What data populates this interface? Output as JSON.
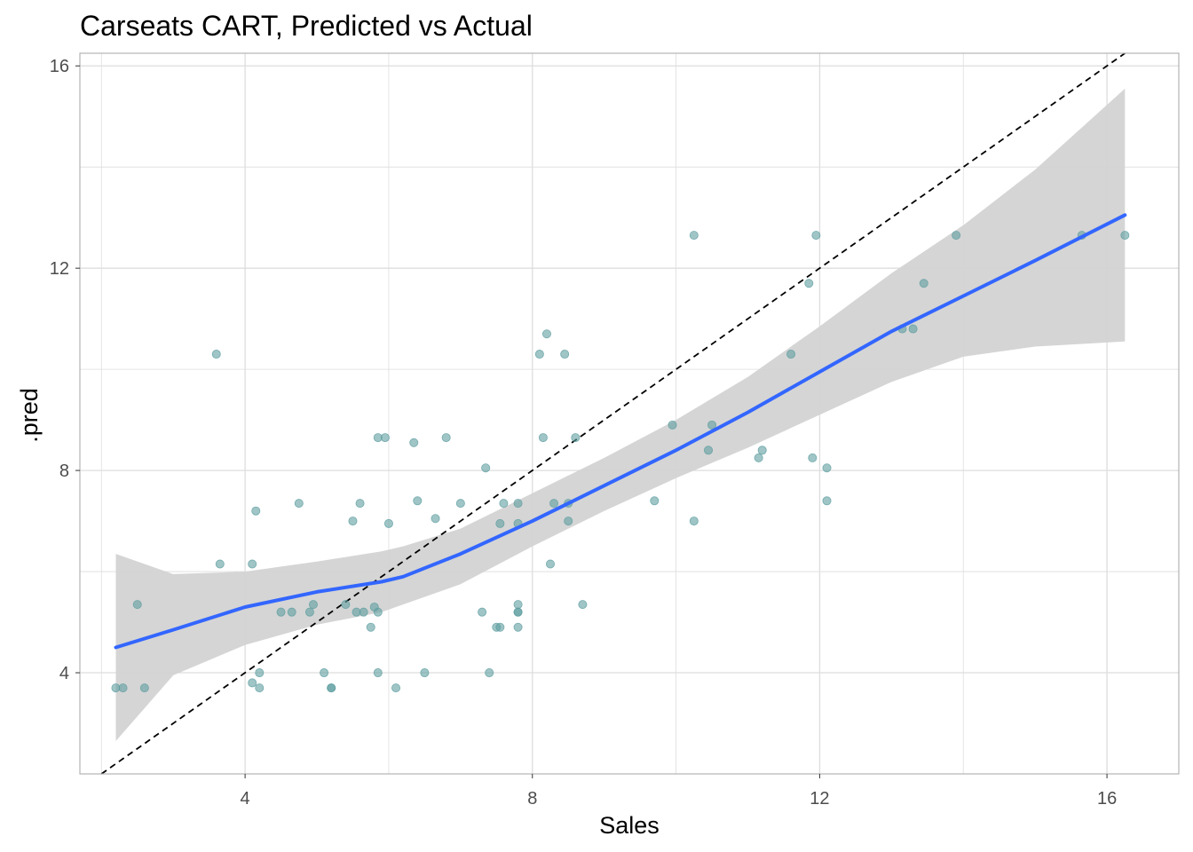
{
  "chart_data": {
    "type": "scatter",
    "title": "Carseats CART, Predicted vs Actual",
    "xlabel": "Sales",
    "ylabel": ".pred",
    "xlim": [
      1.7,
      17.0
    ],
    "ylim": [
      2.0,
      16.25
    ],
    "xticks": [
      4,
      8,
      12,
      16
    ],
    "yticks": [
      4,
      8,
      12,
      16
    ],
    "grid": true,
    "colors": {
      "points": "#5f9ea0",
      "smooth": "#3366ff",
      "ribbon": "#d3d3d3",
      "reference": "#000000",
      "grid": "#dedede",
      "panel_border": "#b3b3b3"
    },
    "reference_line": {
      "slope": 1,
      "intercept": 0,
      "style": "dashed"
    },
    "points": [
      [
        2.2,
        3.7
      ],
      [
        2.3,
        3.7
      ],
      [
        2.5,
        5.35
      ],
      [
        2.6,
        3.7
      ],
      [
        3.6,
        10.3
      ],
      [
        3.65,
        6.15
      ],
      [
        4.1,
        6.15
      ],
      [
        4.1,
        3.8
      ],
      [
        4.15,
        7.2
      ],
      [
        4.2,
        3.7
      ],
      [
        4.2,
        4.0
      ],
      [
        4.5,
        5.2
      ],
      [
        4.65,
        5.2
      ],
      [
        4.75,
        7.35
      ],
      [
        4.9,
        5.2
      ],
      [
        4.95,
        5.35
      ],
      [
        5.1,
        4.0
      ],
      [
        5.2,
        3.7
      ],
      [
        5.2,
        3.7
      ],
      [
        5.4,
        5.35
      ],
      [
        5.5,
        7.0
      ],
      [
        5.55,
        5.2
      ],
      [
        5.6,
        7.35
      ],
      [
        5.65,
        5.2
      ],
      [
        5.75,
        4.9
      ],
      [
        5.8,
        5.3
      ],
      [
        5.85,
        5.2
      ],
      [
        5.85,
        4.0
      ],
      [
        5.85,
        8.65
      ],
      [
        5.95,
        8.65
      ],
      [
        6.0,
        6.95
      ],
      [
        6.1,
        3.7
      ],
      [
        6.35,
        8.55
      ],
      [
        6.4,
        7.4
      ],
      [
        6.5,
        4.0
      ],
      [
        6.65,
        7.05
      ],
      [
        6.8,
        8.65
      ],
      [
        7.0,
        7.35
      ],
      [
        7.3,
        5.2
      ],
      [
        7.35,
        8.05
      ],
      [
        7.4,
        4.0
      ],
      [
        7.5,
        4.9
      ],
      [
        7.55,
        4.9
      ],
      [
        7.55,
        6.95
      ],
      [
        7.6,
        7.35
      ],
      [
        7.8,
        5.2
      ],
      [
        7.8,
        4.9
      ],
      [
        7.8,
        7.35
      ],
      [
        7.8,
        6.95
      ],
      [
        7.8,
        5.35
      ],
      [
        7.8,
        5.2
      ],
      [
        8.1,
        10.3
      ],
      [
        8.15,
        8.65
      ],
      [
        8.2,
        10.7
      ],
      [
        8.25,
        6.15
      ],
      [
        8.3,
        7.35
      ],
      [
        8.45,
        10.3
      ],
      [
        8.5,
        7.35
      ],
      [
        8.5,
        7.0
      ],
      [
        8.6,
        8.65
      ],
      [
        8.7,
        5.35
      ],
      [
        9.7,
        7.4
      ],
      [
        9.95,
        8.9
      ],
      [
        10.25,
        12.65
      ],
      [
        10.25,
        7.0
      ],
      [
        10.45,
        8.4
      ],
      [
        10.5,
        8.9
      ],
      [
        11.15,
        8.25
      ],
      [
        11.2,
        8.4
      ],
      [
        11.6,
        10.3
      ],
      [
        11.85,
        11.7
      ],
      [
        11.9,
        8.25
      ],
      [
        11.95,
        12.65
      ],
      [
        12.1,
        8.05
      ],
      [
        12.1,
        7.4
      ],
      [
        13.15,
        10.8
      ],
      [
        13.3,
        10.8
      ],
      [
        13.45,
        11.7
      ],
      [
        13.9,
        12.65
      ],
      [
        15.65,
        12.65
      ],
      [
        16.25,
        12.65
      ]
    ],
    "smooth_fit": {
      "x": [
        2.2,
        3.0,
        4.0,
        5.0,
        5.9,
        6.2,
        7.0,
        8.0,
        9.0,
        10.0,
        11.0,
        12.0,
        13.0,
        14.0,
        15.0,
        16.25
      ],
      "y": [
        4.5,
        4.85,
        5.3,
        5.6,
        5.8,
        5.9,
        6.35,
        7.0,
        7.7,
        8.4,
        9.15,
        9.95,
        10.75,
        11.45,
        12.15,
        13.05
      ],
      "lower": [
        2.65,
        3.95,
        4.55,
        4.95,
        5.2,
        5.35,
        5.75,
        6.5,
        7.2,
        7.85,
        8.45,
        9.1,
        9.75,
        10.25,
        10.45,
        10.55
      ],
      "upper": [
        6.35,
        5.95,
        6.0,
        6.2,
        6.4,
        6.5,
        6.85,
        7.55,
        8.25,
        9.0,
        9.85,
        10.85,
        11.9,
        12.85,
        13.95,
        15.55
      ]
    }
  }
}
